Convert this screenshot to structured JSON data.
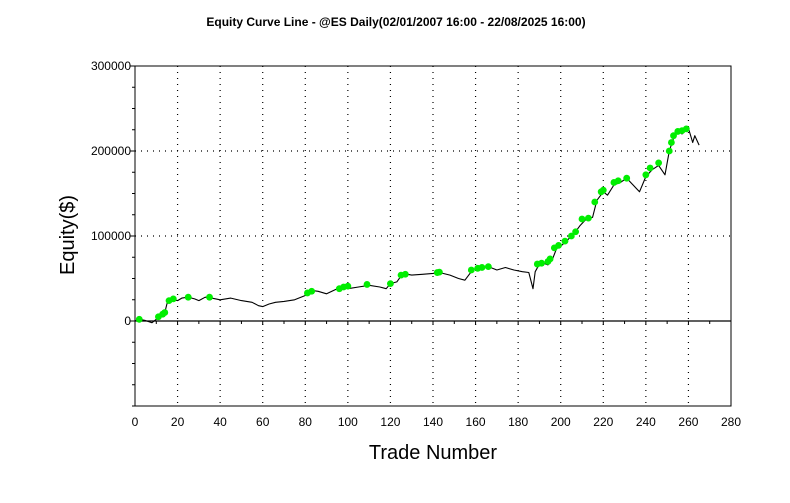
{
  "chart_data": {
    "type": "line",
    "title": "Equity Curve Line - @ES Daily(02/01/2007 16:00 - 22/08/2025 16:00)",
    "xlabel": "Trade Number",
    "ylabel": "Equity($)",
    "xlim": [
      0,
      280
    ],
    "ylim": [
      -100000,
      300000
    ],
    "x_ticks": [
      0,
      20,
      40,
      60,
      80,
      100,
      120,
      140,
      160,
      180,
      200,
      220,
      240,
      260,
      280
    ],
    "y_ticks": [
      0,
      100000,
      200000,
      300000
    ],
    "y_tick_labels": [
      "0",
      "100000",
      "200000",
      "300000"
    ],
    "grid": true,
    "line_color": "#000000",
    "marker_color": "#00ee00",
    "series": [
      {
        "values": [
          [
            0,
            0
          ],
          [
            2,
            2000
          ],
          [
            3,
            1500
          ],
          [
            5,
            500
          ],
          [
            8,
            -2000
          ],
          [
            10,
            2000
          ],
          [
            12,
            6000
          ],
          [
            14,
            10000
          ],
          [
            15,
            20000
          ],
          [
            16,
            26000
          ],
          [
            18,
            25000
          ],
          [
            20,
            24000
          ],
          [
            22,
            27000
          ],
          [
            25,
            28000
          ],
          [
            28,
            26000
          ],
          [
            30,
            24000
          ],
          [
            33,
            28000
          ],
          [
            36,
            27000
          ],
          [
            40,
            25000
          ],
          [
            45,
            27000
          ],
          [
            50,
            24000
          ],
          [
            55,
            22000
          ],
          [
            58,
            18000
          ],
          [
            60,
            17000
          ],
          [
            63,
            20000
          ],
          [
            66,
            22000
          ],
          [
            70,
            23000
          ],
          [
            75,
            25000
          ],
          [
            80,
            30000
          ],
          [
            83,
            36000
          ],
          [
            86,
            35000
          ],
          [
            90,
            32000
          ],
          [
            95,
            38000
          ],
          [
            98,
            40000
          ],
          [
            100,
            38000
          ],
          [
            105,
            40000
          ],
          [
            110,
            42000
          ],
          [
            115,
            40000
          ],
          [
            118,
            38000
          ],
          [
            120,
            44000
          ],
          [
            123,
            46000
          ],
          [
            125,
            53000
          ],
          [
            128,
            55000
          ],
          [
            130,
            54000
          ],
          [
            135,
            55000
          ],
          [
            140,
            56000
          ],
          [
            143,
            57000
          ],
          [
            148,
            54000
          ],
          [
            152,
            50000
          ],
          [
            155,
            48000
          ],
          [
            158,
            58000
          ],
          [
            160,
            62000
          ],
          [
            163,
            63000
          ],
          [
            166,
            64000
          ],
          [
            170,
            60000
          ],
          [
            174,
            63000
          ],
          [
            178,
            60000
          ],
          [
            182,
            58000
          ],
          [
            185,
            57000
          ],
          [
            187,
            38000
          ],
          [
            188,
            58000
          ],
          [
            190,
            67000
          ],
          [
            192,
            68000
          ],
          [
            194,
            66000
          ],
          [
            196,
            72000
          ],
          [
            198,
            85000
          ],
          [
            200,
            88000
          ],
          [
            203,
            95000
          ],
          [
            206,
            102000
          ],
          [
            209,
            112000
          ],
          [
            212,
            120000
          ],
          [
            215,
            122000
          ],
          [
            217,
            142000
          ],
          [
            220,
            152000
          ],
          [
            222,
            148000
          ],
          [
            225,
            160000
          ],
          [
            228,
            163000
          ],
          [
            231,
            168000
          ],
          [
            234,
            160000
          ],
          [
            237,
            152000
          ],
          [
            240,
            170000
          ],
          [
            243,
            178000
          ],
          [
            246,
            183000
          ],
          [
            249,
            172000
          ],
          [
            251,
            200000
          ],
          [
            253,
            215000
          ],
          [
            255,
            224000
          ],
          [
            257,
            220000
          ],
          [
            260,
            227000
          ],
          [
            262,
            210000
          ],
          [
            263,
            218000
          ],
          [
            265,
            207000
          ]
        ],
        "markers": [
          [
            2,
            2000
          ],
          [
            11,
            5000
          ],
          [
            13,
            8000
          ],
          [
            14,
            10000
          ],
          [
            16,
            24000
          ],
          [
            18,
            26000
          ],
          [
            25,
            28000
          ],
          [
            35,
            28000
          ],
          [
            81,
            33000
          ],
          [
            83,
            35000
          ],
          [
            96,
            38000
          ],
          [
            98,
            40000
          ],
          [
            100,
            41000
          ],
          [
            109,
            43000
          ],
          [
            120,
            44000
          ],
          [
            125,
            54000
          ],
          [
            127,
            55000
          ],
          [
            142,
            57000
          ],
          [
            143,
            57500
          ],
          [
            158,
            60000
          ],
          [
            161,
            62000
          ],
          [
            163,
            63000
          ],
          [
            166,
            64000
          ],
          [
            189,
            67000
          ],
          [
            191,
            68000
          ],
          [
            194,
            70000
          ],
          [
            195,
            73000
          ],
          [
            197,
            86000
          ],
          [
            199,
            89000
          ],
          [
            202,
            94000
          ],
          [
            205,
            100000
          ],
          [
            207,
            105000
          ],
          [
            210,
            120000
          ],
          [
            213,
            121000
          ],
          [
            216,
            140000
          ],
          [
            219,
            152000
          ],
          [
            220,
            154000
          ],
          [
            225,
            163000
          ],
          [
            227,
            165000
          ],
          [
            231,
            168000
          ],
          [
            240,
            172000
          ],
          [
            242,
            180000
          ],
          [
            246,
            186000
          ],
          [
            251,
            200000
          ],
          [
            252,
            210000
          ],
          [
            253,
            218000
          ],
          [
            255,
            223000
          ],
          [
            257,
            224000
          ],
          [
            259,
            226000
          ]
        ]
      }
    ]
  }
}
